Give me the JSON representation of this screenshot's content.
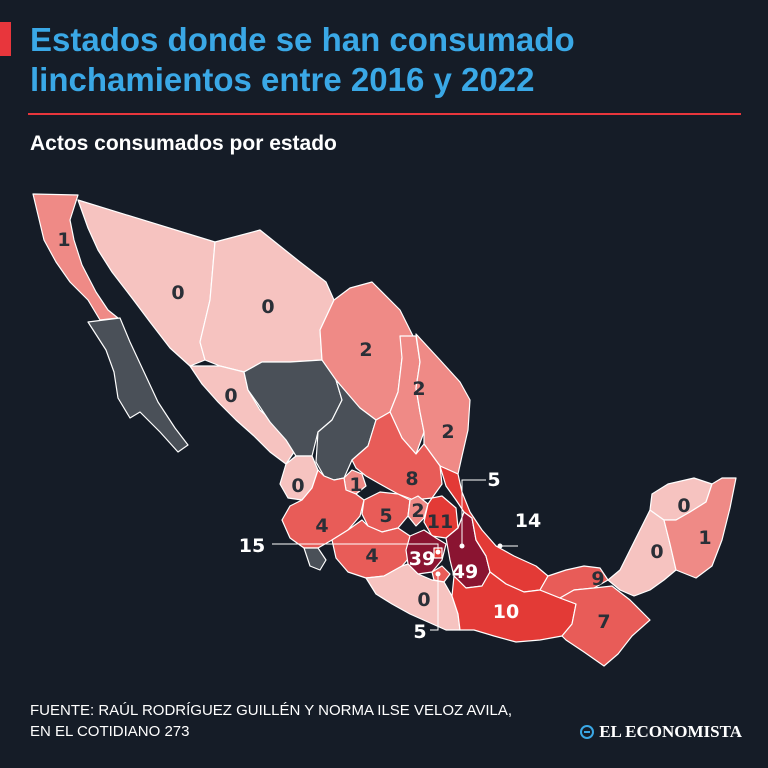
{
  "header": {
    "title_line1": "Estados donde se han consumado",
    "title_line2": "linchamientos entre 2016 y 2022",
    "subtitle": "Actos consumados por estado"
  },
  "colors": {
    "background": "#151c27",
    "title": "#3aa8e6",
    "accent": "#e8363c",
    "no_data": "#4a5058",
    "scale_0": "#f6c3c0",
    "scale_low": "#ef8a86",
    "scale_mid": "#e85c58",
    "scale_high": "#e33a36",
    "scale_max": "#8a1431"
  },
  "states": [
    {
      "id": "baja-california",
      "value": 1
    },
    {
      "id": "baja-california-sur",
      "value": null
    },
    {
      "id": "sonora",
      "value": 0
    },
    {
      "id": "chihuahua",
      "value": 0
    },
    {
      "id": "coahuila",
      "value": 2
    },
    {
      "id": "nuevo-leon",
      "value": 2
    },
    {
      "id": "tamaulipas",
      "value": 2
    },
    {
      "id": "sinaloa",
      "value": 0
    },
    {
      "id": "durango",
      "value": null
    },
    {
      "id": "zacatecas",
      "value": null
    },
    {
      "id": "nayarit",
      "value": 0
    },
    {
      "id": "aguascalientes",
      "value": 1
    },
    {
      "id": "san-luis-potosi",
      "value": 8
    },
    {
      "id": "jalisco",
      "value": 4
    },
    {
      "id": "guanajuato",
      "value": 5
    },
    {
      "id": "queretaro",
      "value": 2
    },
    {
      "id": "hidalgo",
      "value": 11
    },
    {
      "id": "michoacan",
      "value": 4
    },
    {
      "id": "colima",
      "value": null
    },
    {
      "id": "estado-de-mexico",
      "value": 39
    },
    {
      "id": "cdmx",
      "value": 15
    },
    {
      "id": "morelos",
      "value": 5
    },
    {
      "id": "tlaxcala",
      "value": 5
    },
    {
      "id": "puebla",
      "value": 49
    },
    {
      "id": "veracruz",
      "value": 14
    },
    {
      "id": "guerrero",
      "value": 0
    },
    {
      "id": "oaxaca",
      "value": 10
    },
    {
      "id": "tabasco",
      "value": 9
    },
    {
      "id": "chiapas",
      "value": 7
    },
    {
      "id": "campeche",
      "value": 0
    },
    {
      "id": "yucatan",
      "value": 0
    },
    {
      "id": "quintana-roo",
      "value": 1
    }
  ],
  "labels": {
    "baja_california": "1",
    "sonora": "0",
    "chihuahua": "0",
    "coahuila": "2",
    "nuevo_leon": "2",
    "tamaulipas": "2",
    "sinaloa": "0",
    "nayarit": "0",
    "aguascalientes": "1",
    "san_luis_potosi": "8",
    "jalisco": "4",
    "guanajuato": "5",
    "queretaro": "2",
    "hidalgo": "11",
    "michoacan": "4",
    "estado_de_mexico": "39",
    "cdmx": "15",
    "morelos": "5",
    "tlaxcala": "5",
    "puebla": "49",
    "veracruz": "14",
    "guerrero": "0",
    "oaxaca": "10",
    "tabasco": "9",
    "chiapas": "7",
    "campeche": "0",
    "yucatan": "0",
    "quintana_roo": "1"
  },
  "footer": {
    "source_line1": "FUENTE: RAÚL RODRÍGUEZ GUILLÉN Y NORMA ILSE VELOZ AVILA,",
    "source_line2": "EN  EL COTIDIANO 273",
    "brand": "EL ECONOMISTA"
  }
}
